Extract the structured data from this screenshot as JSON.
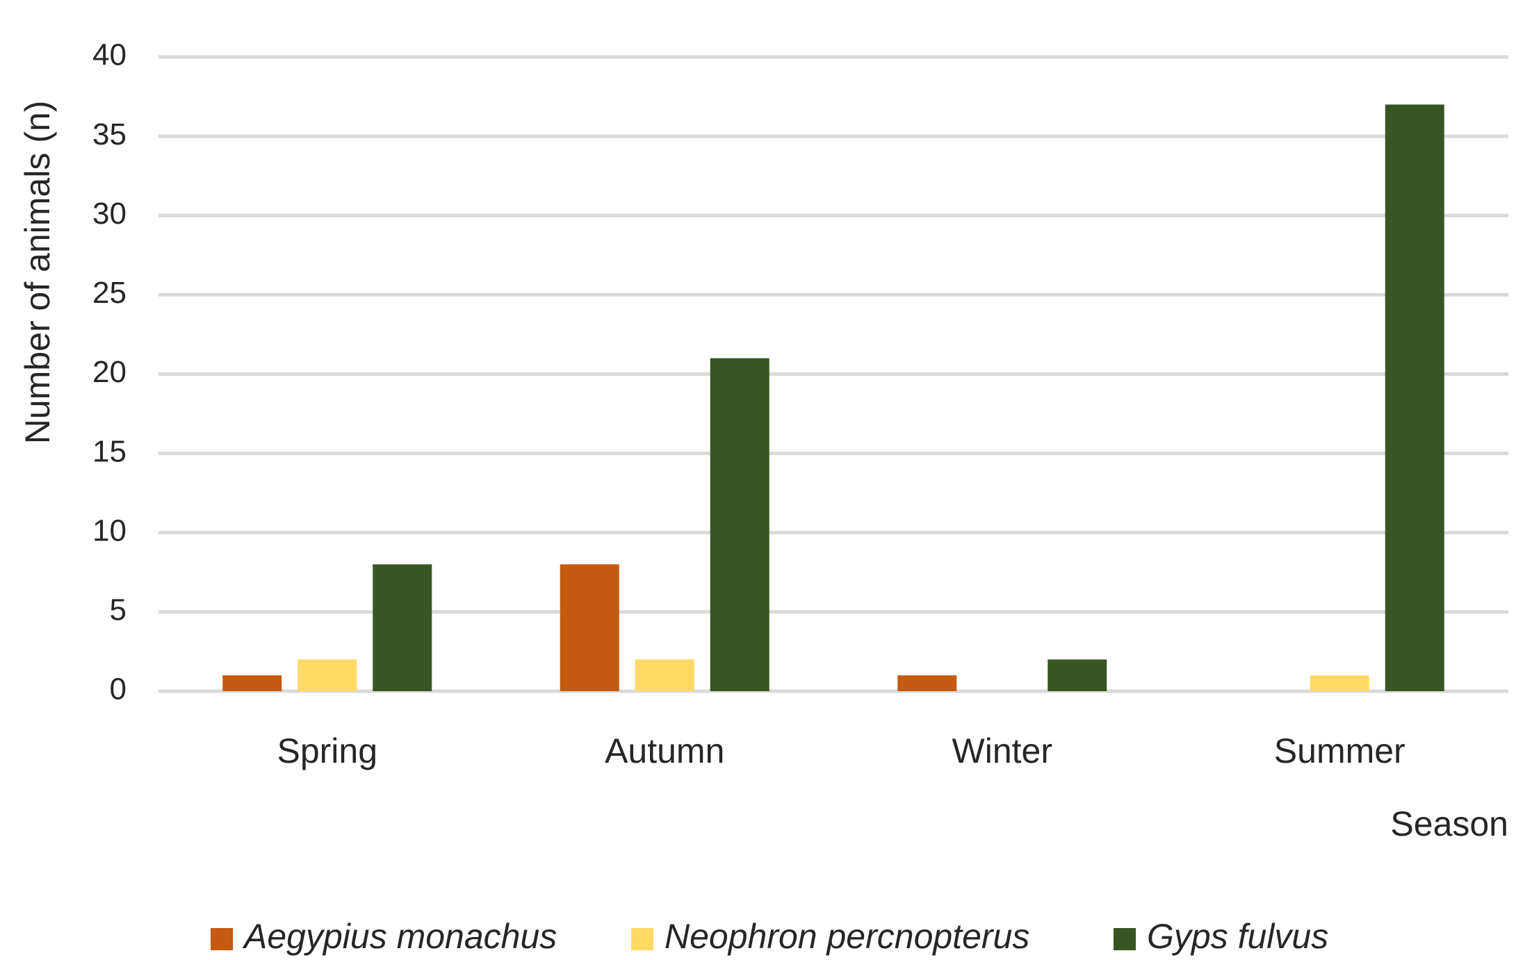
{
  "chart_data": {
    "type": "bar",
    "title": "",
    "xlabel": "Season",
    "ylabel": "Number of animals (n)",
    "categories": [
      "Spring",
      "Autumn",
      "Winter",
      "Summer"
    ],
    "series": [
      {
        "name": "Aegypius monachus",
        "color": "#C55A11",
        "values": [
          1,
          8,
          1,
          0
        ]
      },
      {
        "name": "Neophron percnopterus",
        "color": "#FFD966",
        "values": [
          2,
          2,
          0,
          1
        ]
      },
      {
        "name": "Gyps fulvus",
        "color": "#375623",
        "values": [
          8,
          21,
          2,
          37
        ]
      }
    ],
    "ylim": [
      0,
      40
    ],
    "yticks": [
      0,
      5,
      10,
      15,
      20,
      25,
      30,
      35,
      40
    ],
    "grid": true,
    "legend": "bottom",
    "gridline_color": "#D9D9D9"
  }
}
